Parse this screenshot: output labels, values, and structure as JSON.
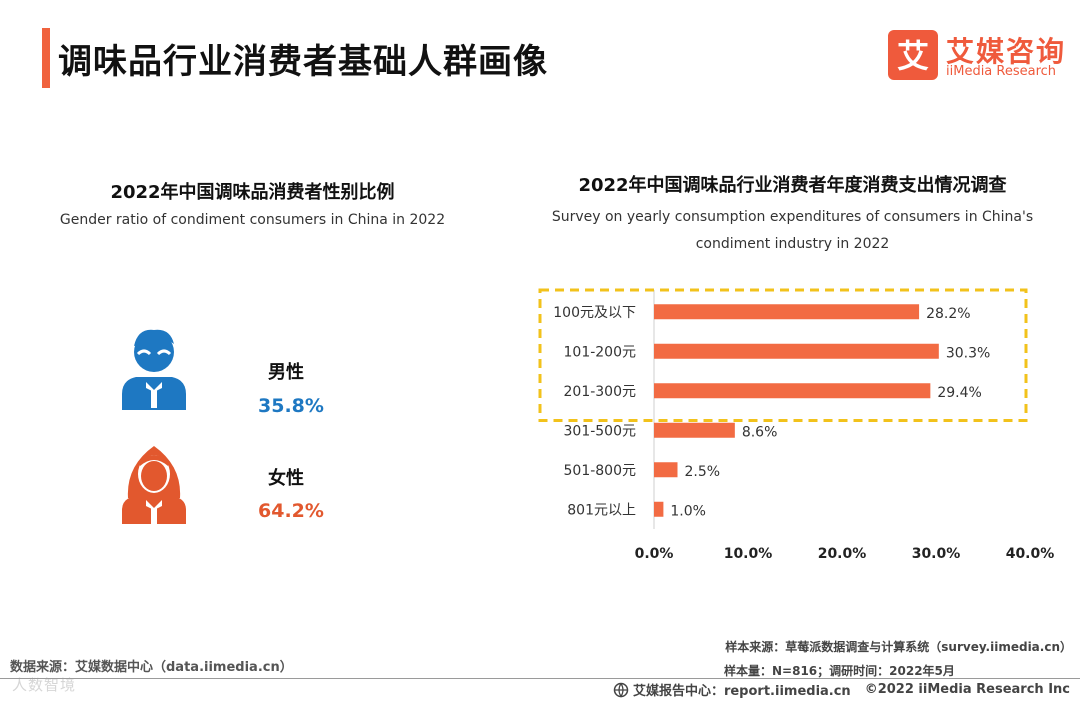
{
  "page": {
    "title": "调味品行业消费者基础人群画像"
  },
  "logo": {
    "cn": "艾媒咨询",
    "en": "iiMedia Research",
    "mark": "艾"
  },
  "gender_section": {
    "title_cn": "2022年中国调味品消费者性别比例",
    "title_en": "Gender ratio of condiment consumers in China in 2022",
    "male": {
      "label": "男性",
      "value": "35.8%",
      "color": "#1e78c2"
    },
    "female": {
      "label": "女性",
      "value": "64.2%",
      "color": "#e2582e"
    }
  },
  "expenditure_section": {
    "title_cn": "2022年中国调味品行业消费者年度消费支出情况调查",
    "title_en_line1": "Survey on yearly consumption expenditures of consumers in China's",
    "title_en_line2": "condiment industry in 2022"
  },
  "chart_data": {
    "type": "bar",
    "orientation": "horizontal",
    "title": "2022年中国调味品行业消费者年度消费支出情况调查",
    "categories": [
      "100元及以下",
      "101-200元",
      "201-300元",
      "301-500元",
      "501-800元",
      "801元以上"
    ],
    "values": [
      28.2,
      30.3,
      29.4,
      8.6,
      2.5,
      1.0
    ],
    "value_labels": [
      "28.2%",
      "30.3%",
      "29.4%",
      "8.6%",
      "2.5%",
      "1.0%"
    ],
    "xlim": [
      0,
      40
    ],
    "xticks": [
      "0.0%",
      "10.0%",
      "20.0%",
      "30.0%",
      "40.0%"
    ],
    "bar_color": "#f26b43",
    "highlight_color": "#f2c21b",
    "highlight_categories": [
      "100元及以下",
      "101-200元",
      "201-300元"
    ],
    "grid": false
  },
  "sources": {
    "left": "数据来源：艾媒数据中心（data.iimedia.cn）",
    "right1": "样本来源：草莓派数据调查与计算系统（survey.iimedia.cn）",
    "right2": "样本量：N=816；调研时间：2022年5月"
  },
  "footer": {
    "report": "艾媒报告中心：report.iimedia.cn",
    "copyright": "©2022  iiMedia Research  Inc"
  },
  "watermark": "人数智境"
}
